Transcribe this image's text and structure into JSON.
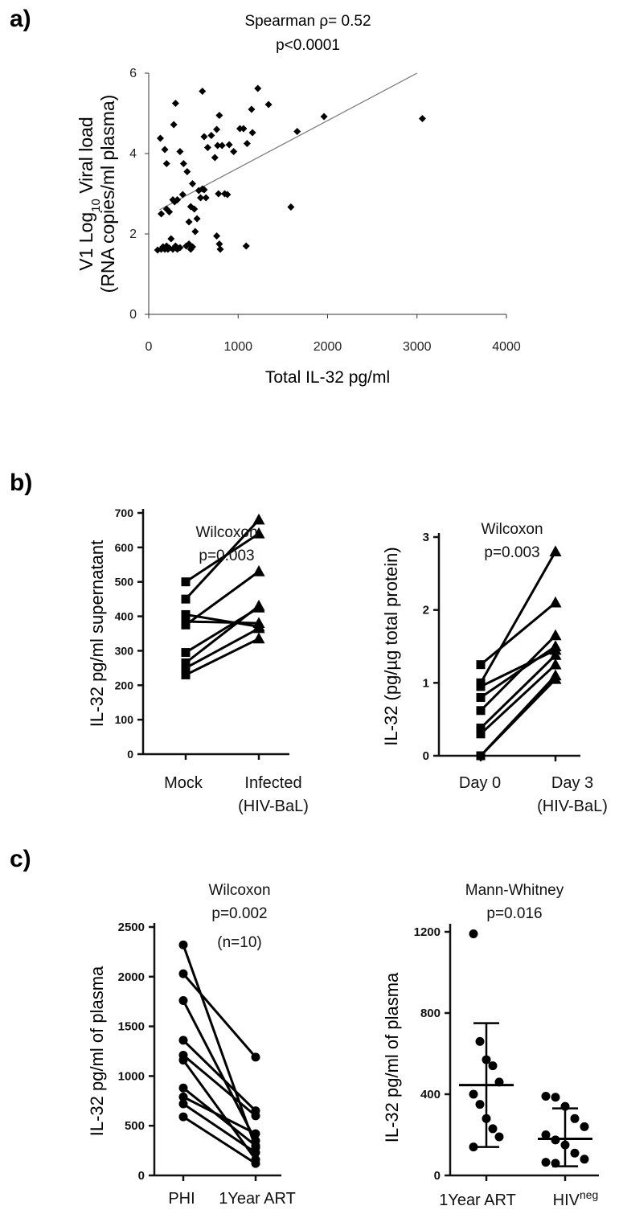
{
  "panels": {
    "a": {
      "label": "a)",
      "stat1": "Spearman ρ= 0.52",
      "stat2": "p<0.0001"
    },
    "b": {
      "label": "b)"
    },
    "c": {
      "label": "c)"
    }
  },
  "chart_data": [
    {
      "id": "a",
      "type": "scatter",
      "title": "Spearman ρ= 0.52 p<0.0001",
      "xlabel": "Total IL-32 pg/ml",
      "ylabel_line1": "V1 Log",
      "ylabel_sub": "10",
      "ylabel_tail": " Viral load",
      "ylabel_line2": "(RNA copies/ml plasma)",
      "xlim": [
        0,
        4000
      ],
      "ylim": [
        0,
        6
      ],
      "xticks": [
        "0",
        "1000",
        "2000",
        "3000",
        "4000"
      ],
      "yticks": [
        "0",
        "2",
        "4",
        "6"
      ],
      "regression": {
        "x0": 120,
        "y0": 2.6,
        "x1": 3000,
        "y1": 6.0
      },
      "points": [
        [
          100,
          1.6
        ],
        [
          140,
          1.62
        ],
        [
          160,
          1.68
        ],
        [
          180,
          1.62
        ],
        [
          200,
          1.7
        ],
        [
          215,
          1.62
        ],
        [
          230,
          1.65
        ],
        [
          250,
          1.88
        ],
        [
          270,
          1.62
        ],
        [
          300,
          1.7
        ],
        [
          320,
          1.62
        ],
        [
          350,
          1.66
        ],
        [
          420,
          1.7
        ],
        [
          450,
          1.75
        ],
        [
          470,
          1.62
        ],
        [
          490,
          1.68
        ],
        [
          520,
          2.06
        ],
        [
          760,
          1.95
        ],
        [
          790,
          1.75
        ],
        [
          800,
          1.62
        ],
        [
          1090,
          1.7
        ],
        [
          130,
          4.38
        ],
        [
          180,
          4.1
        ],
        [
          200,
          3.75
        ],
        [
          140,
          2.5
        ],
        [
          200,
          2.62
        ],
        [
          230,
          2.55
        ],
        [
          270,
          2.85
        ],
        [
          290,
          2.8
        ],
        [
          320,
          2.85
        ],
        [
          380,
          2.98
        ],
        [
          350,
          4.05
        ],
        [
          390,
          3.75
        ],
        [
          430,
          3.55
        ],
        [
          450,
          2.3
        ],
        [
          470,
          2.68
        ],
        [
          490,
          3.25
        ],
        [
          510,
          2.62
        ],
        [
          540,
          2.38
        ],
        [
          560,
          3.08
        ],
        [
          580,
          2.9
        ],
        [
          600,
          3.12
        ],
        [
          620,
          3.1
        ],
        [
          640,
          2.9
        ],
        [
          600,
          5.55
        ],
        [
          620,
          4.42
        ],
        [
          660,
          4.15
        ],
        [
          700,
          4.45
        ],
        [
          740,
          3.9
        ],
        [
          760,
          4.6
        ],
        [
          770,
          4.2
        ],
        [
          790,
          4.95
        ],
        [
          820,
          4.2
        ],
        [
          850,
          3.0
        ],
        [
          880,
          2.98
        ],
        [
          900,
          4.22
        ],
        [
          950,
          4.05
        ],
        [
          780,
          3.0
        ],
        [
          1060,
          4.62
        ],
        [
          1100,
          4.25
        ],
        [
          1150,
          5.1
        ],
        [
          1160,
          4.52
        ],
        [
          1220,
          5.62
        ],
        [
          1340,
          5.22
        ],
        [
          1020,
          4.62
        ],
        [
          280,
          4.72
        ],
        [
          300,
          5.25
        ],
        [
          1660,
          4.55
        ],
        [
          1590,
          2.67
        ],
        [
          1960,
          4.92
        ],
        [
          3060,
          4.87
        ]
      ]
    },
    {
      "id": "b-left",
      "type": "line",
      "title": "Wilcoxon",
      "stat": "p=0.003",
      "ylabel": "IL-32 pg/ml supernatant",
      "categories": [
        "Mock",
        "Infected",
        "(HIV-BaL)"
      ],
      "ylim": [
        0,
        700
      ],
      "yticks": [
        "0",
        "100",
        "200",
        "300",
        "400",
        "500",
        "600",
        "700"
      ],
      "pairs": [
        [
          500,
          640
        ],
        [
          450,
          680
        ],
        [
          405,
          370
        ],
        [
          385,
          380
        ],
        [
          375,
          530
        ],
        [
          295,
          425
        ],
        [
          265,
          430
        ],
        [
          250,
          365
        ],
        [
          230,
          335
        ]
      ]
    },
    {
      "id": "b-right",
      "type": "line",
      "title": "Wilcoxon",
      "stat": "p=0.003",
      "ylabel": "IL-32 (pg/µg total protein)",
      "categories": [
        "Day 0",
        "Day 3",
        "(HIV-BaL)"
      ],
      "ylim": [
        0,
        3
      ],
      "yticks": [
        "0",
        "1",
        "2",
        "3"
      ],
      "pairs": [
        [
          1.25,
          2.1
        ],
        [
          1.0,
          2.8
        ],
        [
          0.95,
          1.45
        ],
        [
          0.8,
          1.5
        ],
        [
          0.62,
          1.65
        ],
        [
          0.38,
          1.38
        ],
        [
          0.3,
          1.25
        ],
        [
          0.0,
          1.1
        ],
        [
          0.0,
          1.05
        ]
      ]
    },
    {
      "id": "c-left",
      "type": "line",
      "title": "Wilcoxon",
      "stat": "p=0.002",
      "note": "(n=10)",
      "ylabel": "IL-32 pg/ml of plasma",
      "categories": [
        "PHI",
        "1Year ART"
      ],
      "ylim": [
        0,
        2500
      ],
      "yticks": [
        "0",
        "500",
        "1000",
        "1500",
        "2000",
        "2500"
      ],
      "pairs": [
        [
          2320,
          280
        ],
        [
          2030,
          1190
        ],
        [
          1760,
          350
        ],
        [
          1360,
          650
        ],
        [
          1210,
          600
        ],
        [
          1160,
          160
        ],
        [
          880,
          300
        ],
        [
          790,
          420
        ],
        [
          720,
          230
        ],
        [
          590,
          120
        ]
      ]
    },
    {
      "id": "c-right",
      "type": "scatter",
      "title": "Mann-Whitney",
      "stat": "p=0.016",
      "ylabel": "IL-32 pg/ml of plasma",
      "categories": [
        "1Year ART",
        "HIV",
        "neg"
      ],
      "ylim": [
        0,
        1200
      ],
      "yticks": [
        "0",
        "400",
        "800",
        "1200"
      ],
      "groups": [
        {
          "mean": 445,
          "sd_low": 140,
          "sd_high": 750,
          "values": [
            1190,
            660,
            570,
            540,
            460,
            400,
            350,
            280,
            230,
            190,
            140
          ]
        },
        {
          "mean": 180,
          "sd_low": 45,
          "sd_high": 330,
          "values": [
            390,
            385,
            340,
            280,
            240,
            200,
            175,
            150,
            110,
            80,
            65,
            60
          ]
        }
      ]
    }
  ]
}
